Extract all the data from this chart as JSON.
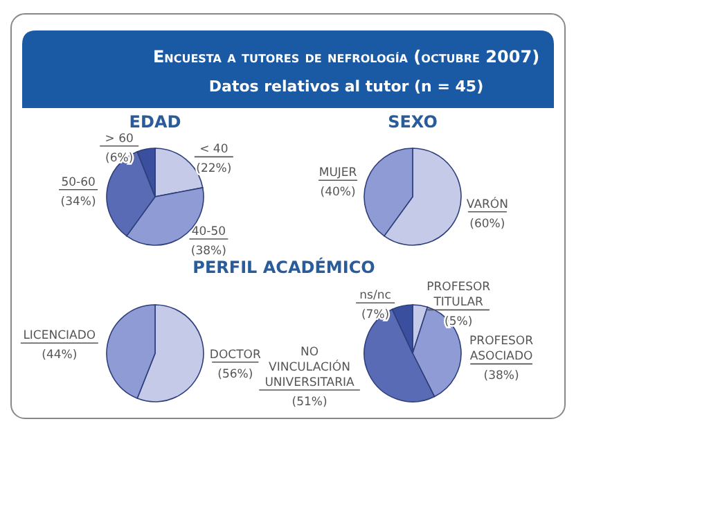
{
  "chart_data": [
    {
      "type": "other",
      "title": "Encuesta a tutores de nefrología (octubre 2007)",
      "subtitle": "Datos relativos al tutor (n = 45)"
    },
    {
      "type": "pie",
      "title": "EDAD",
      "categories": [
        "< 40",
        "40-50",
        "50-60",
        "> 60"
      ],
      "values": [
        22,
        38,
        34,
        6
      ],
      "value_labels": [
        "(22%)",
        "(38%)",
        "(34%)",
        "(6%)"
      ],
      "colors": [
        "#c5cae8",
        "#8e9bd4",
        "#5a6bb5",
        "#3a4f9e"
      ]
    },
    {
      "type": "pie",
      "title": "SEXO",
      "categories": [
        "VARÓN",
        "MUJER"
      ],
      "values": [
        60,
        40
      ],
      "value_labels": [
        "(60%)",
        "(40%)"
      ],
      "colors": [
        "#c5cae8",
        "#8e9bd4"
      ]
    },
    {
      "type": "pie",
      "title": "PERFIL ACADÉMICO",
      "categories": [
        "DOCTOR",
        "LICENCIADO"
      ],
      "values": [
        56,
        44
      ],
      "value_labels": [
        "(56%)",
        "(44%)"
      ],
      "colors": [
        "#c5cae8",
        "#8e9bd4"
      ]
    },
    {
      "type": "pie",
      "categories": [
        "PROFESOR TITULAR",
        "PROFESOR ASOCIADO",
        "NO VINCULACIÓN UNIVERSITARIA",
        "ns/nc"
      ],
      "values": [
        5,
        38,
        51,
        7
      ],
      "value_labels": [
        "(5%)",
        "(38%)",
        "(51%)",
        "(7%)"
      ],
      "colors": [
        "#c5cae8",
        "#8e9bd4",
        "#5a6bb5",
        "#3a4f9e"
      ]
    }
  ]
}
